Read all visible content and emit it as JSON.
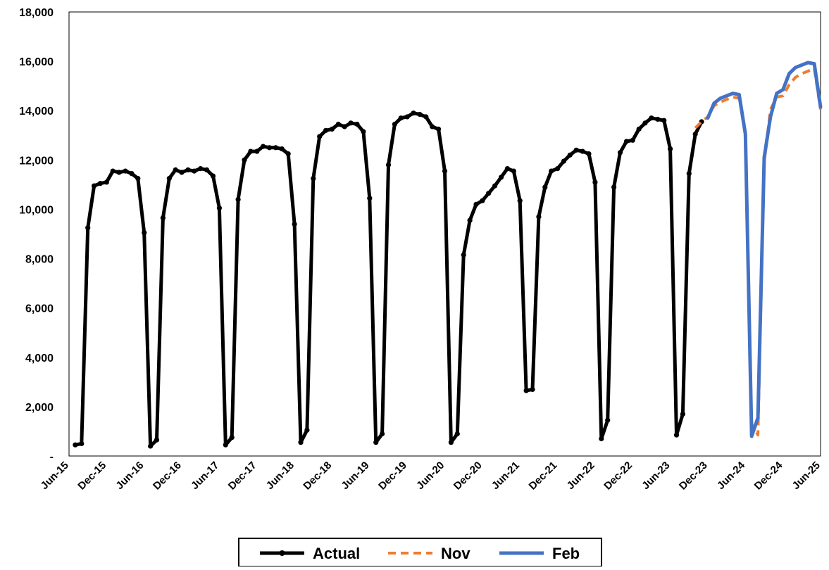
{
  "chart_data": {
    "type": "line",
    "title": "",
    "xlabel": "",
    "ylabel": "",
    "ylim": [
      0,
      18000
    ],
    "yticks": [
      0,
      2000,
      4000,
      6000,
      8000,
      10000,
      12000,
      14000,
      16000,
      18000
    ],
    "ytick_labels": [
      "-",
      "2,000",
      "4,000",
      "6,000",
      "8,000",
      "10,000",
      "12,000",
      "14,000",
      "16,000",
      "18,000"
    ],
    "xlim": [
      "2015-06",
      "2025-06"
    ],
    "xtick_labels": [
      "Jun-15",
      "Dec-15",
      "Jun-16",
      "Dec-16",
      "Jun-17",
      "Dec-17",
      "Jun-18",
      "Dec-18",
      "Jun-19",
      "Dec-19",
      "Jun-20",
      "Dec-20",
      "Jun-21",
      "Dec-21",
      "Jun-22",
      "Dec-22",
      "Jun-23",
      "Dec-23",
      "Jun-24",
      "Dec-24",
      "Jun-25"
    ],
    "grid": false,
    "legend_position": "bottom",
    "series": [
      {
        "name": "Actual",
        "color": "#000000",
        "style": "solid-with-markers",
        "x": [
          "2015-07",
          "2015-08",
          "2015-09",
          "2015-10",
          "2015-11",
          "2015-12",
          "2016-01",
          "2016-02",
          "2016-03",
          "2016-04",
          "2016-05",
          "2016-06",
          "2016-07",
          "2016-08",
          "2016-09",
          "2016-10",
          "2016-11",
          "2016-12",
          "2017-01",
          "2017-02",
          "2017-03",
          "2017-04",
          "2017-05",
          "2017-06",
          "2017-07",
          "2017-08",
          "2017-09",
          "2017-10",
          "2017-11",
          "2017-12",
          "2018-01",
          "2018-02",
          "2018-03",
          "2018-04",
          "2018-05",
          "2018-06",
          "2018-07",
          "2018-08",
          "2018-09",
          "2018-10",
          "2018-11",
          "2018-12",
          "2019-01",
          "2019-02",
          "2019-03",
          "2019-04",
          "2019-05",
          "2019-06",
          "2019-07",
          "2019-08",
          "2019-09",
          "2019-10",
          "2019-11",
          "2019-12",
          "2020-01",
          "2020-02",
          "2020-03",
          "2020-04",
          "2020-05",
          "2020-06",
          "2020-07",
          "2020-08",
          "2020-09",
          "2020-10",
          "2020-11",
          "2020-12",
          "2021-01",
          "2021-02",
          "2021-03",
          "2021-04",
          "2021-05",
          "2021-06",
          "2021-07",
          "2021-08",
          "2021-09",
          "2021-10",
          "2021-11",
          "2021-12",
          "2022-01",
          "2022-02",
          "2022-03",
          "2022-04",
          "2022-05",
          "2022-06",
          "2022-07",
          "2022-08",
          "2022-09",
          "2022-10",
          "2022-11",
          "2022-12",
          "2023-01",
          "2023-02",
          "2023-03",
          "2023-04",
          "2023-05",
          "2023-06",
          "2023-07",
          "2023-08",
          "2023-09",
          "2023-10",
          "2023-11"
        ],
        "values": [
          450,
          500,
          9250,
          10950,
          11050,
          11100,
          11550,
          11500,
          11550,
          11450,
          11250,
          9050,
          400,
          650,
          9650,
          11250,
          11600,
          11500,
          11600,
          11550,
          11650,
          11600,
          11350,
          10050,
          450,
          750,
          10400,
          12000,
          12350,
          12350,
          12550,
          12500,
          12500,
          12450,
          12250,
          9400,
          550,
          1050,
          11250,
          12950,
          13200,
          13250,
          13450,
          13350,
          13500,
          13450,
          13150,
          10450,
          550,
          900,
          11800,
          13450,
          13700,
          13750,
          13900,
          13850,
          13750,
          13350,
          13250,
          11550,
          550,
          900,
          8150,
          9550,
          10200,
          10350,
          10650,
          10950,
          11300,
          11650,
          11550,
          10350,
          2650,
          2700,
          9700,
          10900,
          11550,
          11650,
          11950,
          12200,
          12400,
          12350,
          12250,
          11100,
          700,
          1450,
          10900,
          12300,
          12750,
          12800,
          13250,
          13500,
          13700,
          13650,
          13600,
          12450,
          850,
          1700,
          11450,
          13050,
          13550
        ]
      },
      {
        "name": "Nov",
        "color": "#ED7D31",
        "style": "dashed",
        "x": [
          "2023-10",
          "2023-11",
          "2023-12",
          "2024-01",
          "2024-02",
          "2024-03",
          "2024-04",
          "2024-05",
          "2024-06",
          "2024-07",
          "2024-08",
          "2024-09",
          "2024-10",
          "2024-11",
          "2024-12",
          "2025-01",
          "2025-02",
          "2025-03",
          "2025-04",
          "2025-05",
          "2025-06"
        ],
        "values": [
          13300,
          13550,
          13750,
          14200,
          14350,
          14450,
          14550,
          14500,
          13150,
          1300,
          850,
          11900,
          14050,
          14550,
          14600,
          15050,
          15350,
          15500,
          15600,
          15700,
          14050
        ]
      },
      {
        "name": "Feb",
        "color": "#4472C4",
        "style": "solid",
        "x": [
          "2023-12",
          "2024-01",
          "2024-02",
          "2024-03",
          "2024-04",
          "2024-05",
          "2024-06",
          "2024-07",
          "2024-08",
          "2024-09",
          "2024-10",
          "2024-11",
          "2024-12",
          "2025-01",
          "2025-02",
          "2025-03",
          "2025-04",
          "2025-05",
          "2025-06"
        ],
        "values": [
          13700,
          14300,
          14500,
          14600,
          14700,
          14650,
          13050,
          800,
          1550,
          12100,
          13750,
          14700,
          14850,
          15500,
          15750,
          15850,
          15950,
          15900,
          14150
        ]
      }
    ]
  }
}
